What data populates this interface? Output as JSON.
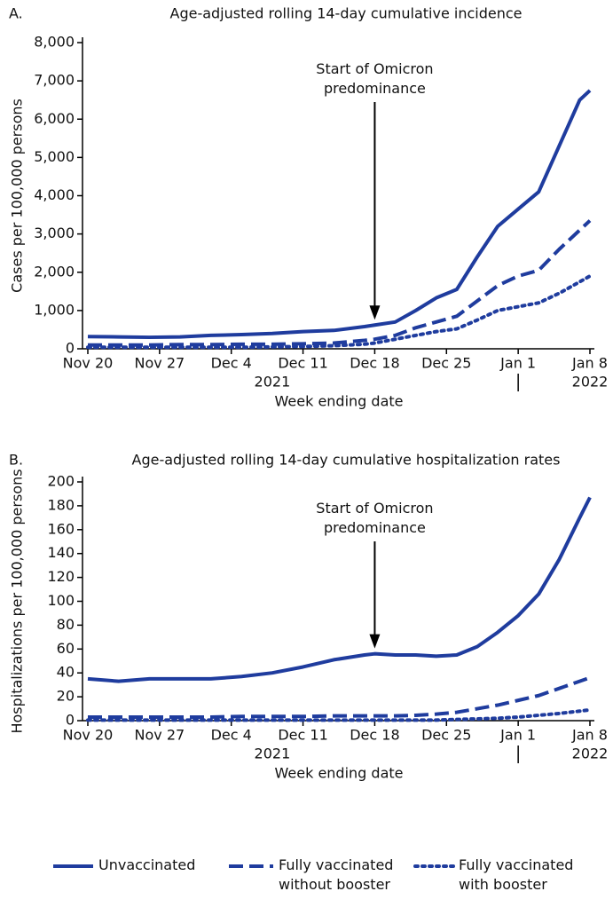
{
  "chart_data": [
    {
      "type": "line",
      "label": "A.",
      "title": "Age-adjusted rolling 14-day cumulative incidence",
      "ylabel": "Cases per 100,000 persons",
      "xlabel": "Week ending date",
      "x": [
        "2021-11-20",
        "2021-11-23",
        "2021-11-26",
        "2021-11-29",
        "2021-12-02",
        "2021-12-05",
        "2021-12-08",
        "2021-12-11",
        "2021-12-14",
        "2021-12-17",
        "2021-12-18",
        "2021-12-20",
        "2021-12-22",
        "2021-12-24",
        "2021-12-26",
        "2021-12-28",
        "2021-12-30",
        "2022-01-01",
        "2022-01-03",
        "2022-01-05",
        "2022-01-07",
        "2022-01-08"
      ],
      "series": [
        {
          "name": "Unvaccinated",
          "color": "#1f3c9e",
          "style": "solid",
          "values": [
            320,
            310,
            300,
            310,
            350,
            370,
            400,
            450,
            480,
            580,
            620,
            700,
            1000,
            1330,
            1550,
            2400,
            3200,
            3650,
            4100,
            5300,
            6500,
            6750
          ]
        },
        {
          "name": "Fully vaccinated without booster",
          "color": "#1f3c9e",
          "style": "dashed",
          "values": [
            100,
            100,
            100,
            110,
            110,
            120,
            120,
            130,
            150,
            220,
            250,
            350,
            550,
            700,
            850,
            1250,
            1650,
            1900,
            2050,
            2600,
            3100,
            3350
          ]
        },
        {
          "name": "Fully vaccinated with booster",
          "color": "#1f3c9e",
          "style": "dotted",
          "values": [
            40,
            40,
            40,
            40,
            40,
            40,
            50,
            60,
            80,
            120,
            150,
            250,
            350,
            450,
            520,
            750,
            1000,
            1100,
            1200,
            1450,
            1750,
            1900
          ]
        }
      ],
      "xlim": [
        "2021-11-20",
        "2022-01-08"
      ],
      "xticks": [
        {
          "value": "2021-11-20",
          "label": "Nov 20"
        },
        {
          "value": "2021-11-27",
          "label": "Nov 27"
        },
        {
          "value": "2021-12-04",
          "label": "Dec 4"
        },
        {
          "value": "2021-12-11",
          "label": "Dec 11"
        },
        {
          "value": "2021-12-18",
          "label": "Dec 18"
        },
        {
          "value": "2021-12-25",
          "label": "Dec 25"
        },
        {
          "value": "2022-01-01",
          "label": "Jan 1"
        },
        {
          "value": "2022-01-08",
          "label": "Jan 8"
        }
      ],
      "x_year_labels": [
        {
          "value": "2021-12-08",
          "label": "2021"
        },
        {
          "value": "2022-01-08",
          "label": "2022"
        }
      ],
      "year_break": "2022-01-01",
      "ylim": [
        0,
        8000
      ],
      "yticks": [
        0,
        {
          "value": 1000,
          "label": "1,000"
        },
        {
          "value": 2000,
          "label": "2,000"
        },
        {
          "value": 3000,
          "label": "3,000"
        },
        {
          "value": 4000,
          "label": "4,000"
        },
        {
          "value": 5000,
          "label": "5,000"
        },
        {
          "value": 6000,
          "label": "6,000"
        },
        {
          "value": 7000,
          "label": "7,000"
        },
        {
          "value": 8000,
          "label": "8,000"
        }
      ],
      "annotation": {
        "text": "Start of Omicron predominance",
        "x": "2021-12-18"
      }
    },
    {
      "type": "line",
      "label": "B.",
      "title": "Age-adjusted rolling 14-day cumulative hospitalization rates",
      "ylabel": "Hospitalizations per 100,000 persons",
      "xlabel": "Week ending date",
      "x": [
        "2021-11-20",
        "2021-11-23",
        "2021-11-26",
        "2021-11-29",
        "2021-12-02",
        "2021-12-05",
        "2021-12-08",
        "2021-12-11",
        "2021-12-14",
        "2021-12-17",
        "2021-12-18",
        "2021-12-20",
        "2021-12-22",
        "2021-12-24",
        "2021-12-26",
        "2021-12-28",
        "2021-12-30",
        "2022-01-01",
        "2022-01-03",
        "2022-01-05",
        "2022-01-07",
        "2022-01-08"
      ],
      "series": [
        {
          "color": "#1f3c9e",
          "style": "solid",
          "values": [
            35,
            33,
            35,
            35,
            35,
            37,
            40,
            45,
            51,
            55,
            56,
            55,
            55,
            54,
            55,
            62,
            74,
            88,
            106,
            135,
            170,
            187
          ]
        },
        {
          "color": "#1f3c9e",
          "style": "dashed",
          "values": [
            3,
            3,
            3,
            3,
            3,
            3.5,
            3.5,
            3.5,
            4,
            4,
            4,
            4,
            4.5,
            5.5,
            7,
            10,
            13,
            17,
            21,
            27,
            33,
            36
          ]
        },
        {
          "color": "#1f3c9e",
          "style": "dotted",
          "values": [
            0.5,
            0.5,
            0.5,
            0.5,
            0.5,
            0.5,
            0.5,
            0.5,
            0.5,
            0.5,
            0.5,
            0.5,
            0.5,
            0.5,
            1,
            1.5,
            2,
            3,
            4.5,
            6,
            8,
            9
          ]
        }
      ],
      "xlim": [
        "2021-11-20",
        "2022-01-08"
      ],
      "xticks": [
        {
          "value": "2021-11-20",
          "label": "Nov 20"
        },
        {
          "value": "2021-11-27",
          "label": "Nov 27"
        },
        {
          "value": "2021-12-04",
          "label": "Dec 4"
        },
        {
          "value": "2021-12-11",
          "label": "Dec 11"
        },
        {
          "value": "2021-12-18",
          "label": "Dec 18"
        },
        {
          "value": "2021-12-25",
          "label": "Dec 25"
        },
        {
          "value": "2022-01-01",
          "label": "Jan 1"
        },
        {
          "value": "2022-01-08",
          "label": "Jan 8"
        }
      ],
      "x_year_labels": [
        {
          "value": "2021-12-08",
          "label": "2021"
        },
        {
          "value": "2022-01-08",
          "label": "2022"
        }
      ],
      "year_break": "2022-01-01",
      "ylim": [
        0,
        200
      ],
      "yticks": [
        0,
        20,
        40,
        60,
        80,
        100,
        120,
        140,
        160,
        180,
        200
      ],
      "annotation": {
        "text": "Start of Omicron predominance",
        "x": "2021-12-18"
      }
    }
  ]
}
